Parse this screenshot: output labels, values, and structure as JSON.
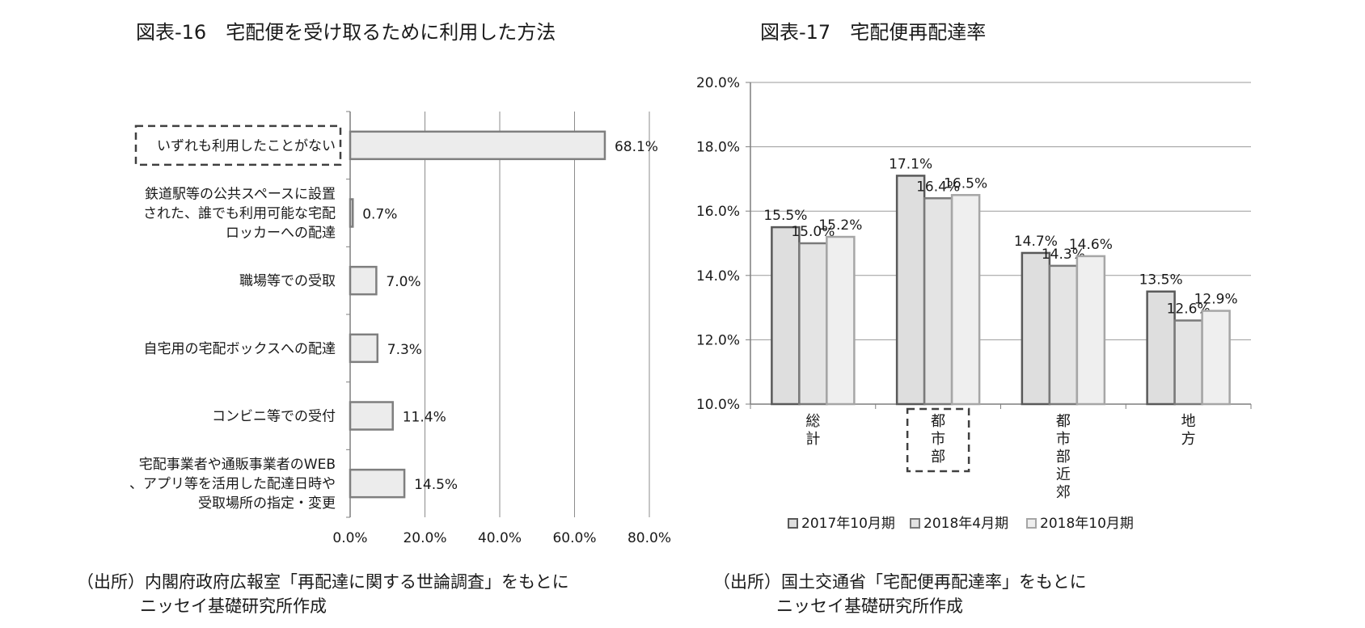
{
  "fig16": {
    "title": "図表-16　宅配便を受け取るために利用した方法",
    "source_line1": "（出所）内閣府政府広報室「再配達に関する世論調査」をもとに",
    "source_line2": "ニッセイ基礎研究所作成"
  },
  "fig17": {
    "title": "図表-17　宅配便再配達率",
    "source_line1": "（出所）国土交通省「宅配便再配達率」をもとに",
    "source_line2": "ニッセイ基礎研究所作成"
  },
  "chart_data": [
    {
      "type": "bar",
      "orientation": "horizontal",
      "title": "宅配便を受け取るために利用した方法",
      "categories": [
        [
          "いずれも利用したことがない"
        ],
        [
          "鉄道駅等の公共スペースに設置",
          "された、誰でも利用可能な宅配",
          "ロッカーへの配達"
        ],
        [
          "職場等での受取"
        ],
        [
          "自宅用の宅配ボックスへの配達"
        ],
        [
          "コンビニ等での受付"
        ],
        [
          "宅配事業者や通販事業者のWEB",
          "、アプリ等を活用した配達日時や",
          "受取場所の指定・変更"
        ]
      ],
      "values": [
        68.1,
        0.7,
        7.0,
        7.3,
        11.4,
        14.5
      ],
      "value_labels": [
        "68.1%",
        "0.7%",
        "7.0%",
        "7.3%",
        "11.4%",
        "14.5%"
      ],
      "xlim": [
        0,
        80
      ],
      "xticks": [
        "0.0%",
        "20.0%",
        "40.0%",
        "60.0%",
        "80.0%"
      ],
      "highlighted_category": "いずれも利用したことがない",
      "grid": true,
      "bar_color": "#ececec",
      "bar_edge_color": "#7f7f7f"
    },
    {
      "type": "bar",
      "title": "宅配便再配達率",
      "categories": [
        [
          "総",
          "計"
        ],
        [
          "都",
          "市",
          "部"
        ],
        [
          "都",
          "市",
          "部",
          "近",
          "郊"
        ],
        [
          "地",
          "方"
        ]
      ],
      "series": [
        {
          "name": "2017年10月期",
          "values": [
            15.5,
            17.1,
            14.7,
            13.5
          ],
          "labels": [
            "15.5%",
            "17.1%",
            "14.7%",
            "13.5%"
          ],
          "color": "#dedede",
          "edge": "#595959"
        },
        {
          "name": "2018年4月期",
          "values": [
            15.0,
            16.4,
            14.3,
            12.6
          ],
          "labels": [
            "15.0%",
            "16.4%",
            "14.3%",
            "12.6%"
          ],
          "color": "#e4e4e4",
          "edge": "#7a7a7a"
        },
        {
          "name": "2018年10月期",
          "values": [
            15.2,
            16.5,
            14.6,
            12.9
          ],
          "labels": [
            "15.2%",
            "16.5%",
            "14.6%",
            "12.9%"
          ],
          "color": "#efefef",
          "edge": "#a6a6a6"
        }
      ],
      "ylim": [
        10,
        20
      ],
      "yticks": [
        "10.0%",
        "12.0%",
        "14.0%",
        "16.0%",
        "18.0%",
        "20.0%"
      ],
      "highlighted_category": "都市部",
      "grid": true,
      "legend_position": "bottom"
    }
  ]
}
